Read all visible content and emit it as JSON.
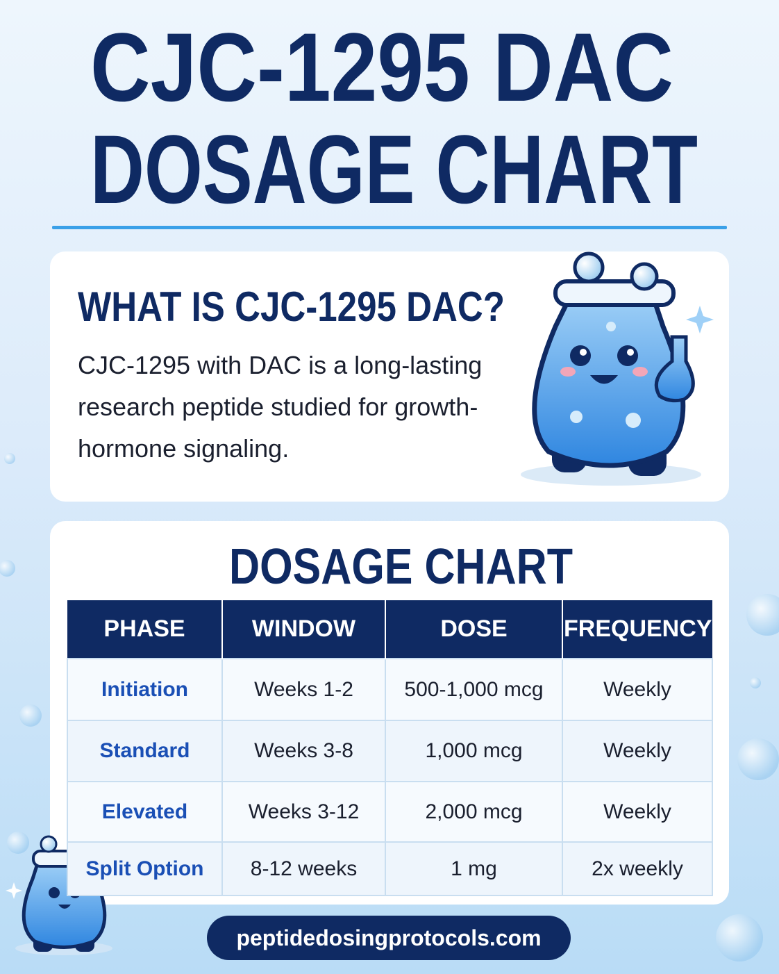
{
  "header": {
    "title_lines": [
      "CJC-1295 DAC",
      "DOSAGE CHART"
    ]
  },
  "intro": {
    "heading": "WHAT IS CJC-1295 DAC?",
    "text": "CJC-1295 with DAC is a long-lasting research peptide studied for growth-hormone signaling."
  },
  "dosage": {
    "heading": "DOSAGE CHART",
    "table": {
      "columns": [
        "PHASE",
        "WINDOW",
        "DOSE",
        "FREQUENCY"
      ],
      "rows": [
        [
          "Initiation",
          "Weeks 1-2",
          "500-1,000 mcg",
          "Weekly"
        ],
        [
          "Standard",
          "Weeks 3-8",
          "1,000 mcg",
          "Weekly"
        ],
        [
          "Elevated",
          "Weeks 3-12",
          "2,000 mcg",
          "Weekly"
        ],
        [
          "Split Option",
          "8-12 weeks",
          "1 mg",
          "2x weekly"
        ]
      ]
    }
  },
  "footer": {
    "url": "peptidedosingprotocols.com"
  }
}
